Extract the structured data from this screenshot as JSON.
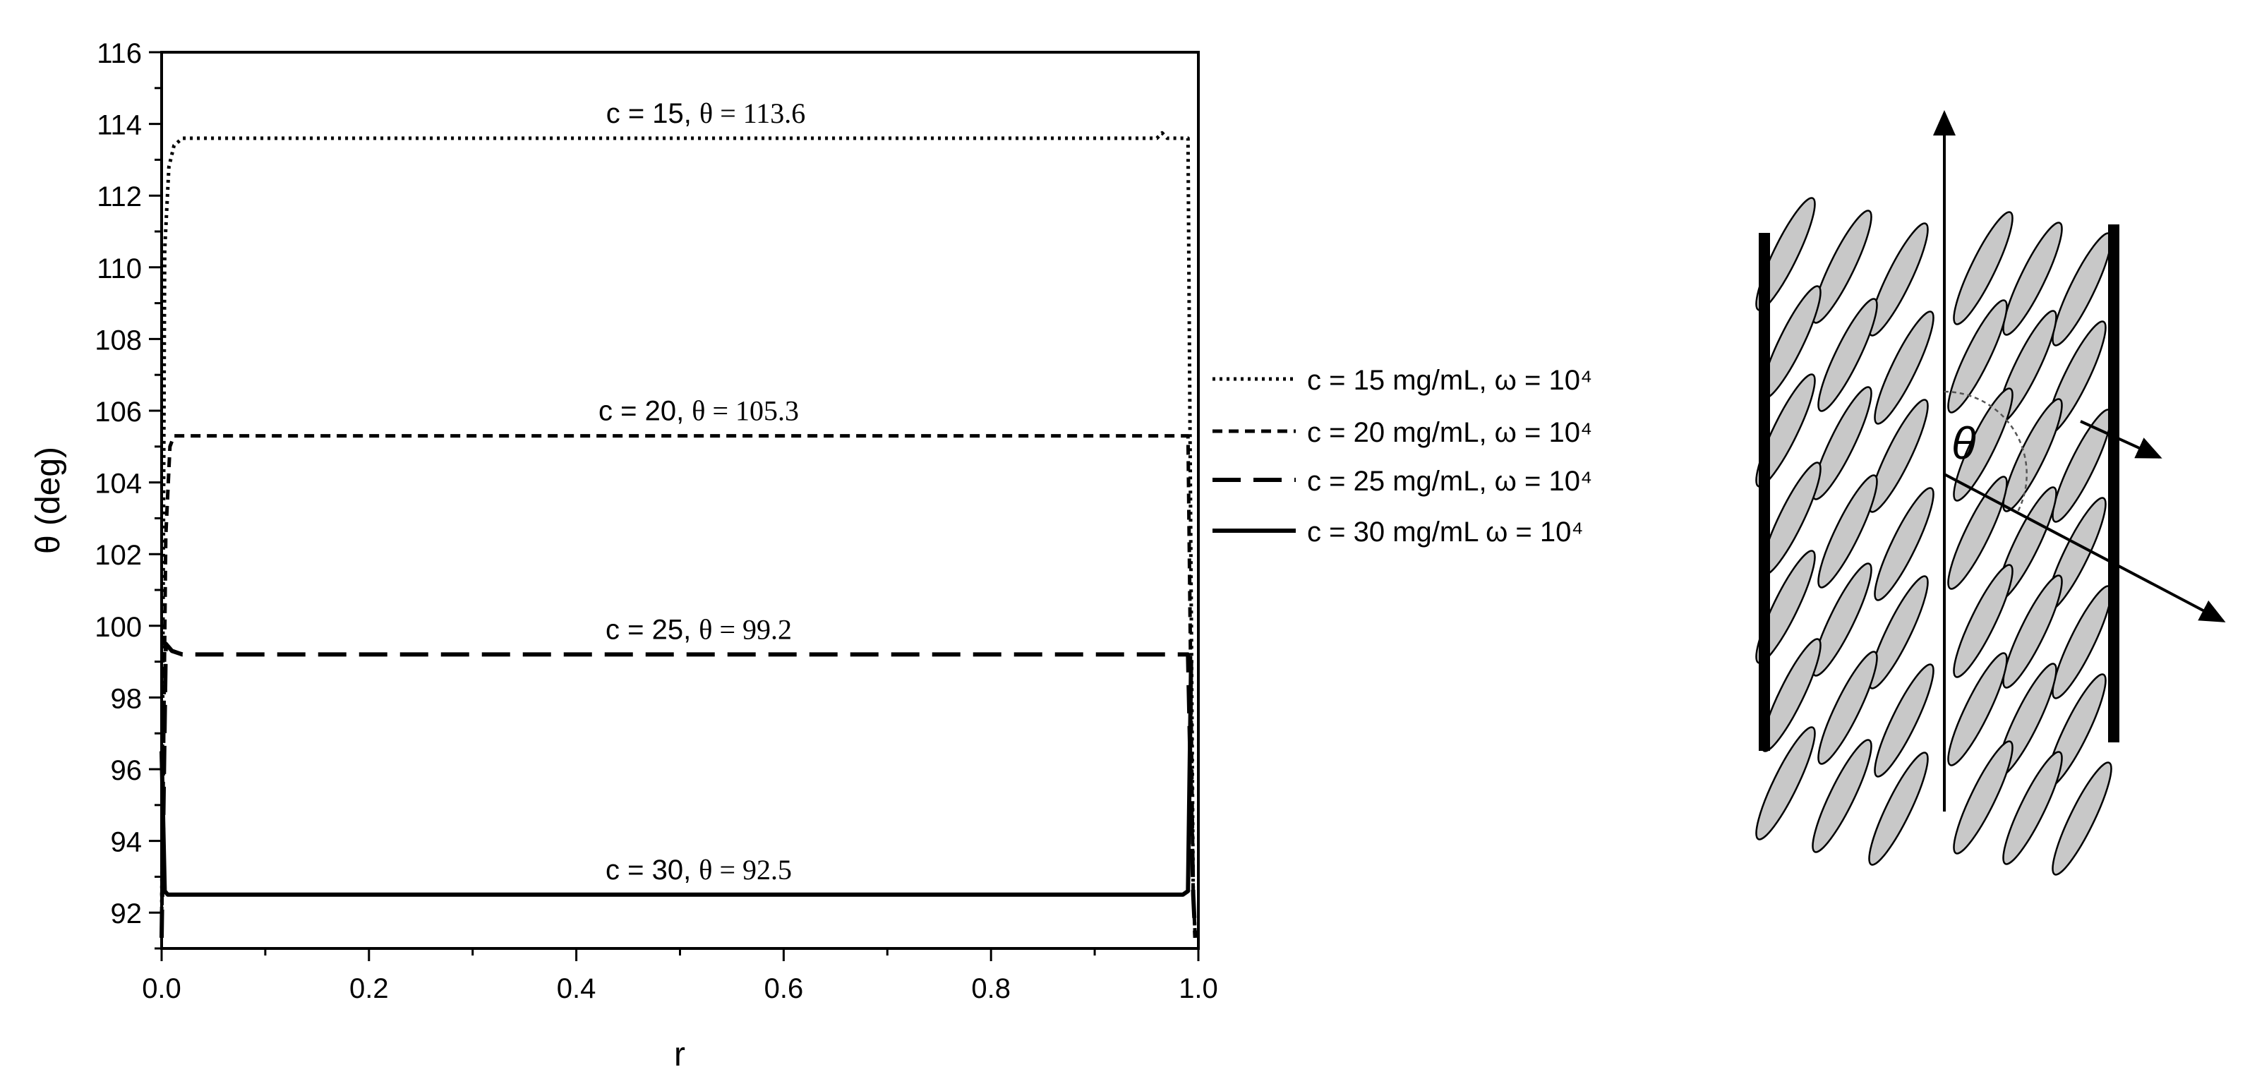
{
  "chart_data": {
    "type": "line",
    "xlabel": "r",
    "ylabel": "θ (deg)",
    "xlim": [
      0.0,
      1.0
    ],
    "ylim": [
      91,
      116
    ],
    "x_ticks": [
      "0.0",
      "0.2",
      "0.4",
      "0.6",
      "0.8",
      "1.0"
    ],
    "y_ticks": [
      "92",
      "94",
      "96",
      "98",
      "100",
      "102",
      "104",
      "106",
      "108",
      "110",
      "112",
      "114",
      "116"
    ],
    "grid": false,
    "legend_position": "right",
    "series": [
      {
        "name": "c = 15 mg/mL, ω = 10⁴",
        "dash": "dotted",
        "points": [
          [
            0.0,
            91.3
          ],
          [
            0.003,
            110.5
          ],
          [
            0.007,
            112.8
          ],
          [
            0.012,
            113.4
          ],
          [
            0.02,
            113.6
          ],
          [
            0.5,
            113.6
          ],
          [
            0.96,
            113.6
          ],
          [
            0.965,
            113.75
          ],
          [
            0.97,
            113.6
          ],
          [
            0.99,
            113.6
          ],
          [
            0.995,
            92.5
          ],
          [
            0.997,
            91.3
          ]
        ],
        "annotation": {
          "c": "c = 15",
          "theta": "θ = 113.6"
        }
      },
      {
        "name": "c = 20 mg/mL, ω = 10⁴",
        "dash": "short-dash",
        "points": [
          [
            0.0,
            91.3
          ],
          [
            0.004,
            102.5
          ],
          [
            0.008,
            105.0
          ],
          [
            0.012,
            105.3
          ],
          [
            0.5,
            105.3
          ],
          [
            0.99,
            105.3
          ],
          [
            0.995,
            92.5
          ],
          [
            0.997,
            91.3
          ]
        ],
        "annotation": {
          "c": "c = 20",
          "theta": "θ = 105.3"
        }
      },
      {
        "name": "c = 25 mg/mL, ω = 10⁴",
        "dash": "long-dash",
        "points": [
          [
            0.0,
            91.3
          ],
          [
            0.004,
            99.5
          ],
          [
            0.01,
            99.3
          ],
          [
            0.02,
            99.2
          ],
          [
            0.5,
            99.2
          ],
          [
            0.99,
            99.2
          ],
          [
            0.995,
            92.5
          ],
          [
            0.997,
            91.3
          ]
        ],
        "annotation": {
          "c": "c = 25",
          "theta": "θ = 99.2"
        }
      },
      {
        "name": "c = 30 mg/mL ω = 10⁴",
        "dash": "solid",
        "points": [
          [
            0.0,
            96.5
          ],
          [
            0.003,
            92.6
          ],
          [
            0.006,
            92.5
          ],
          [
            0.02,
            92.5
          ],
          [
            0.5,
            92.5
          ],
          [
            0.985,
            92.5
          ],
          [
            0.99,
            92.6
          ],
          [
            0.993,
            99.0
          ]
        ],
        "annotation": {
          "c": "c = 30",
          "theta": "θ = 92.5"
        }
      }
    ]
  },
  "schematic": {
    "angle_label": "θ",
    "fill_color": "#c8c8c8",
    "stroke_color": "#000000"
  }
}
